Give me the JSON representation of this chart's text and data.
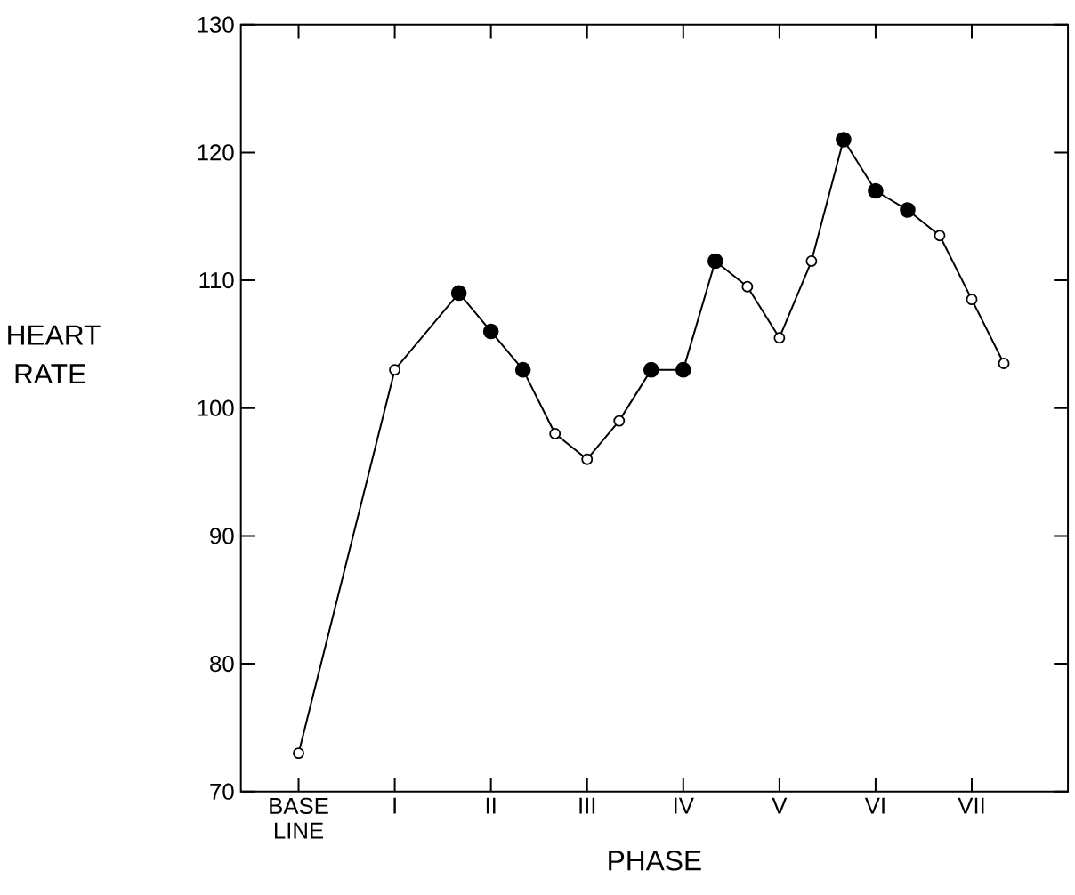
{
  "chart_data": {
    "type": "line",
    "xlabel": "PHASE",
    "ylabel": "HEART RATE",
    "categories": [
      "BASE LINE",
      null,
      null,
      "I",
      null,
      null,
      "II",
      null,
      null,
      "III",
      null,
      null,
      "IV",
      null,
      null,
      "V",
      null,
      null,
      "VI",
      null,
      null,
      "VII",
      null
    ],
    "series": [
      {
        "color": "#000000",
        "values": [
          73,
          null,
          null,
          103,
          null,
          109,
          106,
          103,
          98,
          96,
          99,
          103,
          103,
          111.5,
          109.5,
          105.5,
          111.5,
          121,
          117,
          115.5,
          113.5,
          108.5,
          103.5
        ],
        "colors": [
          "#ffffff",
          null,
          null,
          "#ffffff",
          null,
          "#000000",
          "#000000",
          "#000000",
          "#ffffff",
          "#ffffff",
          "#ffffff",
          "#000000",
          "#000000",
          "#000000",
          "#ffffff",
          "#ffffff",
          "#ffffff",
          "#000000",
          "#000000",
          "#000000",
          "#ffffff",
          "#ffffff",
          "#ffffff"
        ]
      }
    ],
    "ylim": [
      70,
      130
    ],
    "yticks": [
      70,
      80,
      90,
      100,
      110,
      120,
      130
    ],
    "marker": "circle",
    "line_style": "solid"
  }
}
